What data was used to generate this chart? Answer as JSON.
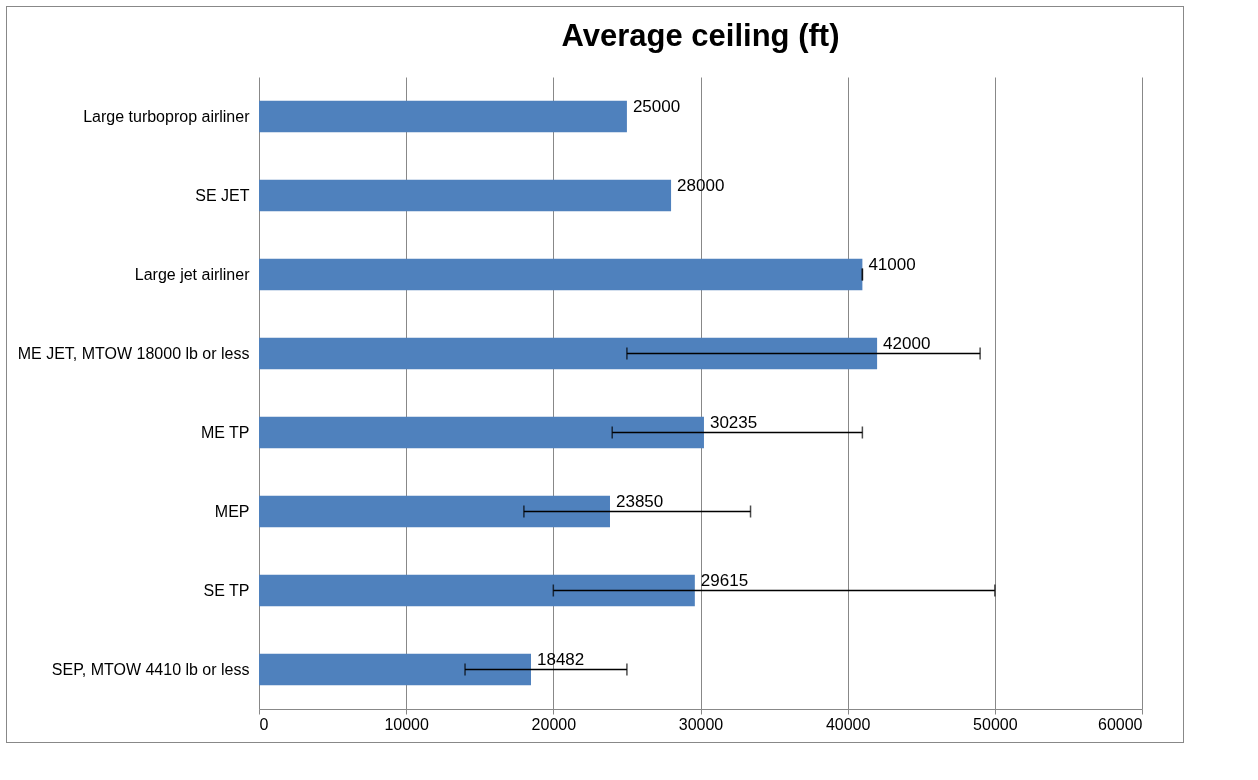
{
  "chart_data": {
    "type": "bar",
    "title": "Average ceiling (ft)",
    "orientation": "horizontal",
    "categories": [
      "Large turboprop airliner",
      "SE JET",
      "Large jet airliner",
      "ME JET, MTOW 18000 lb or less",
      "ME TP",
      "MEP",
      "SE TP",
      "SEP, MTOW 4410 lb or less"
    ],
    "values": [
      25000,
      28000,
      41000,
      42000,
      30235,
      23850,
      29615,
      18482
    ],
    "errors": [
      null,
      null,
      [
        41000,
        41000
      ],
      [
        25000,
        49000
      ],
      [
        24000,
        41000
      ],
      [
        18000,
        33400
      ],
      [
        20000,
        50000
      ],
      [
        14000,
        25000
      ]
    ],
    "color": "#4f81bd",
    "xlim": [
      0,
      60000
    ],
    "xticks": [
      0,
      10000,
      20000,
      30000,
      40000,
      50000,
      60000
    ],
    "grid": "x",
    "data_labels": true
  }
}
